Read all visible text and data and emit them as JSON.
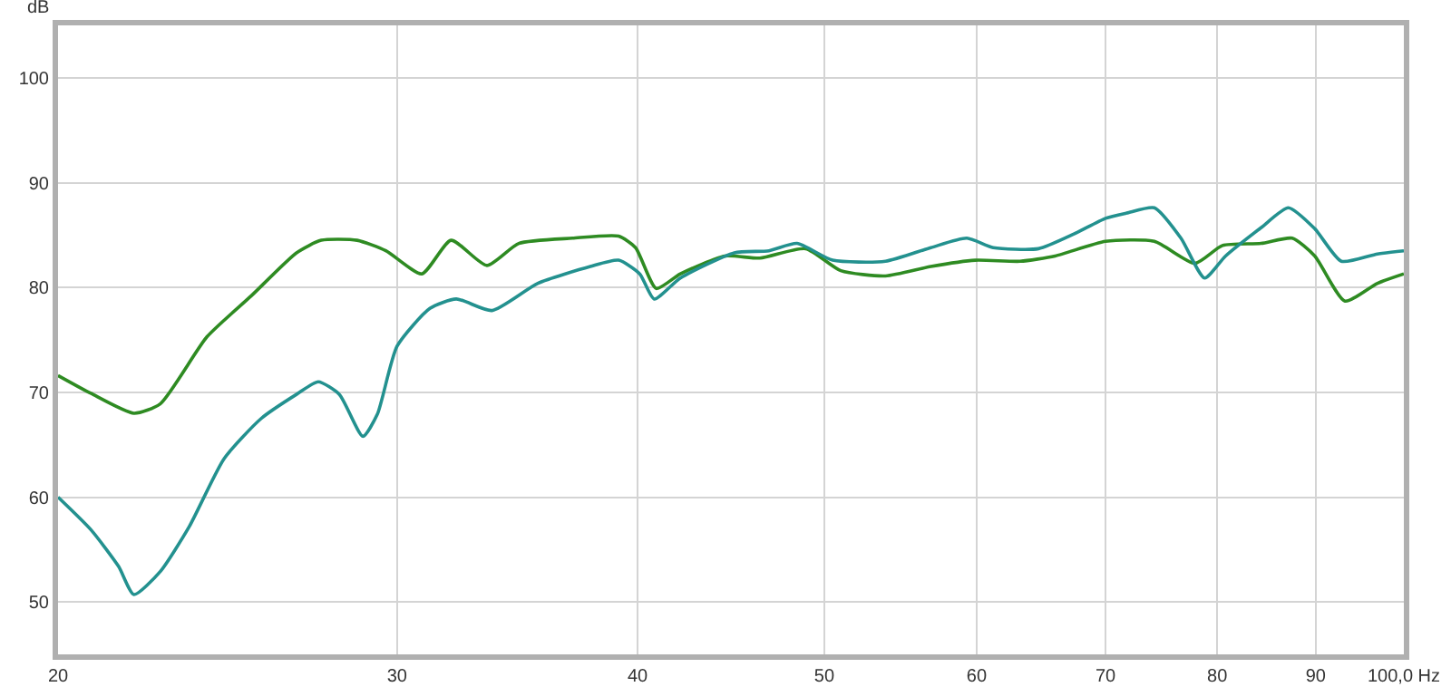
{
  "chart_data": {
    "type": "line",
    "ylabel": "dB",
    "xlim": [
      20,
      100
    ],
    "xticks": [
      20,
      30,
      40,
      50,
      60,
      70,
      80,
      90,
      {
        "value": 100,
        "label": "100,0 Hz"
      }
    ],
    "ylim": [
      45,
      105
    ],
    "yticks": [
      50,
      60,
      70,
      80,
      90,
      100
    ],
    "log": "x",
    "grid": true,
    "marker": "none",
    "line_style": "solid",
    "series": [
      {
        "color": "#2e8b22",
        "x": [
          20,
          20.8,
          21.9,
          22.6,
          23.9,
          25.2,
          26.6,
          27.4,
          28.6,
          29.6,
          30.9,
          32.0,
          33.4,
          34.7,
          37.0,
          39.1,
          39.9,
          40.9,
          42.1,
          44.4,
          46.3,
          48.9,
          51.0,
          53.8,
          56.8,
          59.9,
          63.2,
          65.9,
          70.0,
          74.2,
          77.9,
          80.5,
          84.3,
          87.5,
          89.9,
          93.2,
          96.9,
          100
        ],
        "values": [
          71.6,
          69.9,
          68.0,
          68.9,
          75.3,
          79.2,
          83.3,
          84.5,
          84.5,
          83.5,
          81.3,
          84.5,
          82.1,
          84.2,
          84.7,
          84.9,
          83.8,
          79.9,
          81.3,
          83.0,
          82.8,
          83.7,
          81.6,
          81.1,
          82.0,
          82.6,
          82.5,
          83.0,
          84.4,
          84.4,
          82.3,
          84.0,
          84.2,
          84.7,
          83.0,
          78.7,
          80.4,
          81.3
        ]
      },
      {
        "color": "#23918f",
        "x": [
          20,
          20.8,
          21.5,
          21.9,
          22.6,
          23.4,
          24.4,
          25.5,
          26.6,
          27.3,
          28.0,
          28.8,
          29.3,
          30.0,
          31.2,
          32.2,
          33.6,
          35.5,
          37.8,
          39.1,
          40.1,
          40.8,
          42.1,
          44.9,
          46.8,
          48.4,
          50.5,
          53.8,
          56.8,
          59.3,
          61.2,
          64.6,
          67.4,
          70.0,
          71.8,
          74.2,
          76.6,
          78.8,
          80.8,
          84.3,
          87.1,
          89.9,
          92.8,
          96.9,
          100
        ],
        "values": [
          60.0,
          56.9,
          53.4,
          50.7,
          52.9,
          57.2,
          63.7,
          67.5,
          69.8,
          71.0,
          69.8,
          65.8,
          67.9,
          74.4,
          78.0,
          78.9,
          77.8,
          80.4,
          82.0,
          82.6,
          81.3,
          78.9,
          80.9,
          83.3,
          83.5,
          84.2,
          82.6,
          82.5,
          83.8,
          84.7,
          83.8,
          83.7,
          85.1,
          86.6,
          87.1,
          87.6,
          84.7,
          80.9,
          83.0,
          85.7,
          87.6,
          85.6,
          82.5,
          83.2,
          83.5
        ]
      }
    ]
  }
}
